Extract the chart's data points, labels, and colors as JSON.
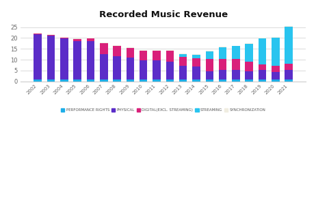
{
  "title": "Recorded Music Revenue",
  "years": [
    "2002",
    "2003",
    "2004",
    "2005",
    "2006",
    "2007",
    "2008",
    "2009",
    "2010",
    "2011",
    "2012",
    "2013",
    "2014",
    "2015",
    "2016",
    "2017",
    "2018",
    "2019",
    "2020",
    "2021"
  ],
  "performance_rights": [
    0.7,
    0.7,
    0.7,
    0.7,
    0.7,
    0.7,
    0.7,
    0.7,
    0.7,
    0.7,
    0.7,
    0.7,
    0.7,
    0.7,
    0.7,
    0.7,
    0.7,
    0.7,
    0.7,
    0.7
  ],
  "physical": [
    21.0,
    20.3,
    19.2,
    18.0,
    17.8,
    12.0,
    10.8,
    10.3,
    9.0,
    9.0,
    8.5,
    6.5,
    6.0,
    4.0,
    4.5,
    4.5,
    4.0,
    4.5,
    3.5,
    4.5
  ],
  "digital": [
    0.3,
    0.3,
    0.3,
    0.8,
    1.2,
    5.0,
    5.0,
    4.5,
    4.5,
    4.5,
    5.0,
    4.0,
    4.0,
    5.5,
    5.0,
    5.0,
    4.5,
    2.5,
    3.0,
    3.0
  ],
  "streaming": [
    0.0,
    0.0,
    0.0,
    0.0,
    0.0,
    0.0,
    0.0,
    0.0,
    0.0,
    0.0,
    0.0,
    1.5,
    1.5,
    3.5,
    5.5,
    6.0,
    8.0,
    12.0,
    13.0,
    17.0
  ],
  "sync": [
    0.3,
    0.3,
    0.3,
    0.3,
    0.3,
    0.3,
    0.3,
    0.3,
    0.3,
    0.3,
    0.3,
    0.3,
    0.3,
    0.3,
    0.3,
    0.3,
    0.3,
    0.3,
    0.3,
    0.3
  ],
  "colors": {
    "performance_rights": "#1EAEE8",
    "physical": "#5B2DC8",
    "digital": "#D9207A",
    "streaming": "#29C4EF",
    "sync": "#F0EDE0"
  },
  "ylim": [
    0,
    27
  ],
  "yticks": [
    0,
    5,
    10,
    15,
    20,
    25
  ],
  "background_color": "#ffffff",
  "legend_labels": [
    "PERFORMANCE RIGHTS",
    "PHYSICAL",
    "DIGITAL(EXCL. STREAMING)",
    "STREAMING",
    "SYNCHRONIZATION"
  ]
}
